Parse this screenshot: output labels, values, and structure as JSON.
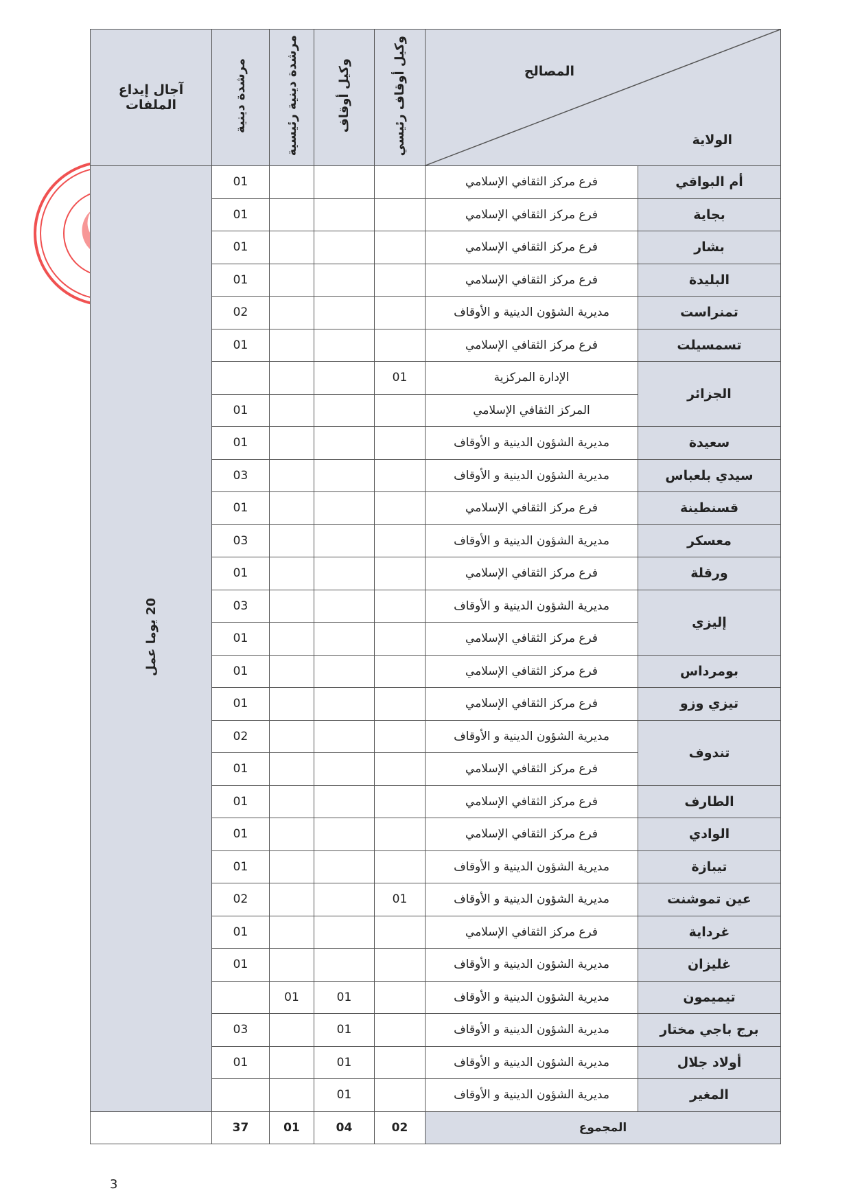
{
  "header": {
    "region_label": "الولاية",
    "service_label": "المصالح",
    "columns": [
      "وكيل أوقاف رئيسي",
      "وكيل أوقاف",
      "مرشدة دينية رئيسية",
      "مرشدة دينية"
    ],
    "deadline_label": "آجال إيداع الملفات"
  },
  "deadline": "20 يوما عمل",
  "groups": [
    {
      "wilaya": "أم البواقي",
      "services": [
        {
          "name": "فرع مركز الثقافي الإسلامي",
          "counts": [
            null,
            null,
            null,
            "01"
          ]
        }
      ]
    },
    {
      "wilaya": "بجاية",
      "services": [
        {
          "name": "فرع مركز الثقافي الإسلامي",
          "counts": [
            null,
            null,
            null,
            "01"
          ]
        }
      ]
    },
    {
      "wilaya": "بشار",
      "services": [
        {
          "name": "فرع مركز الثقافي الإسلامي",
          "counts": [
            null,
            null,
            null,
            "01"
          ]
        }
      ]
    },
    {
      "wilaya": "البليدة",
      "services": [
        {
          "name": "فرع مركز الثقافي الإسلامي",
          "counts": [
            null,
            null,
            null,
            "01"
          ]
        }
      ]
    },
    {
      "wilaya": "تمنراست",
      "services": [
        {
          "name": "مديرية الشؤون الدينية و الأوقاف",
          "counts": [
            null,
            null,
            null,
            "02"
          ]
        }
      ]
    },
    {
      "wilaya": "تسمسيلت",
      "services": [
        {
          "name": "فرع مركز الثقافي الإسلامي",
          "counts": [
            null,
            null,
            null,
            "01"
          ]
        }
      ]
    },
    {
      "wilaya": "الجزائر",
      "services": [
        {
          "name": "الإدارة المركزية",
          "counts": [
            "01",
            null,
            null,
            null
          ]
        },
        {
          "name": "المركز الثقافي الإسلامي",
          "counts": [
            null,
            null,
            null,
            "01"
          ]
        }
      ]
    },
    {
      "wilaya": "سعيدة",
      "services": [
        {
          "name": "مديرية الشؤون الدينية و الأوقاف",
          "counts": [
            null,
            null,
            null,
            "01"
          ]
        }
      ]
    },
    {
      "wilaya": "سيدي بلعباس",
      "services": [
        {
          "name": "مديرية الشؤون الدينية و الأوقاف",
          "counts": [
            null,
            null,
            null,
            "03"
          ]
        }
      ]
    },
    {
      "wilaya": "قسنطينة",
      "services": [
        {
          "name": "فرع مركز الثقافي الإسلامي",
          "counts": [
            null,
            null,
            null,
            "01"
          ]
        }
      ]
    },
    {
      "wilaya": "معسكر",
      "services": [
        {
          "name": "مديرية الشؤون الدينية و الأوقاف",
          "counts": [
            null,
            null,
            null,
            "03"
          ]
        }
      ]
    },
    {
      "wilaya": "ورقلة",
      "services": [
        {
          "name": "فرع مركز الثقافي الإسلامي",
          "counts": [
            null,
            null,
            null,
            "01"
          ]
        }
      ]
    },
    {
      "wilaya": "إليزي",
      "services": [
        {
          "name": "مديرية الشؤون الدينية و الأوقاف",
          "counts": [
            null,
            null,
            null,
            "03"
          ]
        },
        {
          "name": "فرع مركز الثقافي الإسلامي",
          "counts": [
            null,
            null,
            null,
            "01"
          ]
        }
      ]
    },
    {
      "wilaya": "بومرداس",
      "services": [
        {
          "name": "فرع مركز الثقافي الإسلامي",
          "counts": [
            null,
            null,
            null,
            "01"
          ]
        }
      ]
    },
    {
      "wilaya": "تيزي وزو",
      "services": [
        {
          "name": "فرع مركز الثقافي الإسلامي",
          "counts": [
            null,
            null,
            null,
            "01"
          ]
        }
      ]
    },
    {
      "wilaya": "تندوف",
      "services": [
        {
          "name": "مديرية الشؤون الدينية و الأوقاف",
          "counts": [
            null,
            null,
            null,
            "02"
          ]
        },
        {
          "name": "فرع مركز الثقافي الإسلامي",
          "counts": [
            null,
            null,
            null,
            "01"
          ]
        }
      ]
    },
    {
      "wilaya": "الطارف",
      "services": [
        {
          "name": "فرع مركز الثقافي الإسلامي",
          "counts": [
            null,
            null,
            null,
            "01"
          ]
        }
      ]
    },
    {
      "wilaya": "الوادي",
      "services": [
        {
          "name": "فرع مركز الثقافي الإسلامي",
          "counts": [
            null,
            null,
            null,
            "01"
          ]
        }
      ]
    },
    {
      "wilaya": "تيبازة",
      "services": [
        {
          "name": "مديرية الشؤون الدينية و الأوقاف",
          "counts": [
            null,
            null,
            null,
            "01"
          ]
        }
      ]
    },
    {
      "wilaya": "عين تموشنت",
      "services": [
        {
          "name": "مديرية الشؤون الدينية و الأوقاف",
          "counts": [
            "01",
            null,
            null,
            "02"
          ]
        }
      ]
    },
    {
      "wilaya": "غرداية",
      "services": [
        {
          "name": "فرع مركز الثقافي الإسلامي",
          "counts": [
            null,
            null,
            null,
            "01"
          ]
        }
      ]
    },
    {
      "wilaya": "غليزان",
      "services": [
        {
          "name": "مديرية الشؤون الدينية و الأوقاف",
          "counts": [
            null,
            null,
            null,
            "01"
          ]
        }
      ]
    },
    {
      "wilaya": "تيميمون",
      "services": [
        {
          "name": "مديرية الشؤون الدينية و الأوقاف",
          "counts": [
            null,
            "01",
            "01",
            null
          ]
        }
      ]
    },
    {
      "wilaya": "برج باجي مختار",
      "services": [
        {
          "name": "مديرية الشؤون الدينية و الأوقاف",
          "counts": [
            null,
            "01",
            null,
            "03"
          ]
        }
      ]
    },
    {
      "wilaya": "أولاد جلال",
      "services": [
        {
          "name": "مديرية الشؤون الدينية و الأوقاف",
          "counts": [
            null,
            "01",
            null,
            "01"
          ]
        }
      ]
    },
    {
      "wilaya": "المغير",
      "services": [
        {
          "name": "مديرية الشؤون الدينية و الأوقاف",
          "counts": [
            null,
            "01",
            null,
            null
          ]
        }
      ]
    }
  ],
  "total": {
    "label": "المجموع",
    "values": [
      "02",
      "04",
      "01",
      "37"
    ]
  },
  "page_number": "3"
}
